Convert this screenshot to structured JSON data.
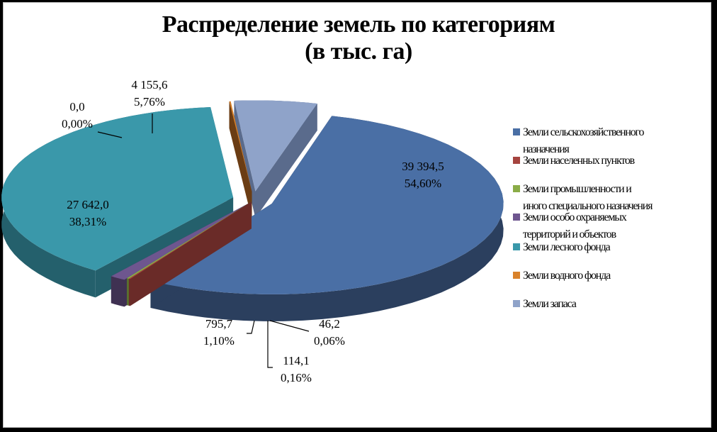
{
  "chart_data": {
    "type": "pie",
    "title": [
      "Распределение земель по категориям",
      "(в тыс. га)"
    ],
    "slices": [
      {
        "name": "Земли сельскохозяйственного назначения",
        "value_label": "39 394,5",
        "percent_label": "54,60%",
        "value": 39394.5,
        "percent": 54.6,
        "color": "#4a6fa5",
        "side": "#2b3f5e"
      },
      {
        "name": "Земли населенных пунктов",
        "value_label": "46,2",
        "percent_label": "0,06%",
        "value": 46.2,
        "percent": 0.06,
        "color": "#a5443f",
        "side": "#6a2b28"
      },
      {
        "name": "Земли промышленности и иного специального назначения",
        "value_label": "114,1",
        "percent_label": "0,16%",
        "value": 114.1,
        "percent": 0.16,
        "color": "#8aac47",
        "side": "#5a702e"
      },
      {
        "name": "Земли особо охраняемых территорий и объектов",
        "value_label": "795,7",
        "percent_label": "1,10%",
        "value": 795.7,
        "percent": 1.1,
        "color": "#6e568f",
        "side": "#3f3152"
      },
      {
        "name": "Земли лесного фонда",
        "value_label": "27 642,0",
        "percent_label": "38,31%",
        "value": 27642.0,
        "percent": 38.31,
        "color": "#3a98aa",
        "side": "#24606c"
      },
      {
        "name": "Земли водного фонда",
        "value_label": "0,0",
        "percent_label": "0,00%",
        "value": 0.0,
        "percent": 0.0,
        "color": "#d9822b",
        "side": "#6b3d14"
      },
      {
        "name": "Земли запаса",
        "value_label": "4 155,6",
        "percent_label": "5,76%",
        "value": 4155.6,
        "percent": 5.76,
        "color": "#8fa3c9",
        "side": "#5a6b8c"
      }
    ],
    "legend_lines": [
      [
        "Земли сельскохозяйственного",
        "назначения"
      ],
      [
        "Земли населенных пунктов"
      ],
      [
        "Земли промышленности и",
        "иного специального назначения"
      ],
      [
        "Земли особо охраняемых",
        "территорий и объектов"
      ],
      [
        "Земли лесного фонда"
      ],
      [
        "Земли водного фонда"
      ],
      [
        "Земли запаса"
      ]
    ],
    "legend_position": "right",
    "exploded": true,
    "style": "3d"
  }
}
